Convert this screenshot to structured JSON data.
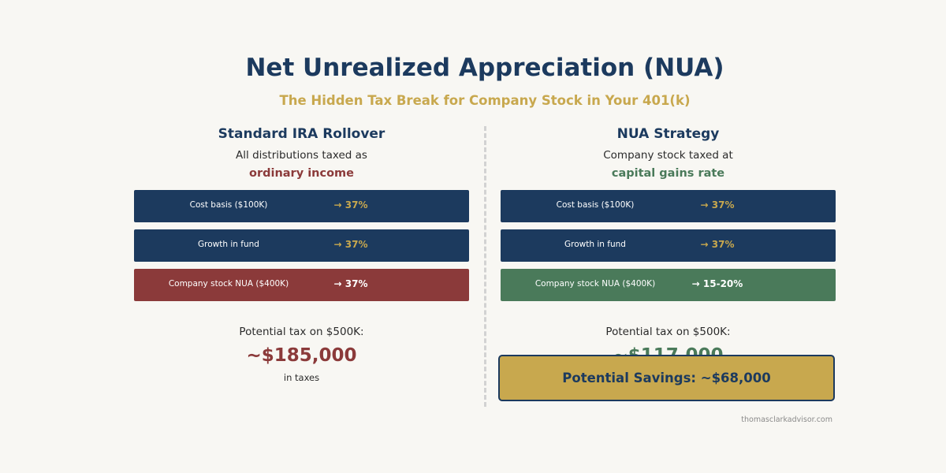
{
  "header": {
    "title": "Net Unrealized Appreciation (NUA)",
    "subtitle": "The Hidden Tax Break for Company Stock in Your 401(k)"
  },
  "colors": {
    "navy": "#1c3a5e",
    "gold": "#c8a84e",
    "red": "#8b3a3a",
    "green": "#4a7a5a",
    "background": "#f8f7f3"
  },
  "left": {
    "title": "Standard IRA Rollover",
    "description": "All distributions taxed as",
    "emphasis": "ordinary income",
    "rows": [
      {
        "label": "Cost basis ($100K)",
        "rate": "→ 37%"
      },
      {
        "label": "Growth in fund",
        "rate": "→ 37%"
      },
      {
        "label": "Company stock NUA ($400K)",
        "rate": "→ 37%"
      }
    ],
    "potential_label": "Potential tax on $500K:",
    "potential_amount": "~$185,000",
    "potential_note": "in taxes"
  },
  "right": {
    "title": "NUA Strategy",
    "description": "Company stock taxed at",
    "emphasis": "capital gains rate",
    "rows": [
      {
        "label": "Cost basis ($100K)",
        "rate": "→ 37%"
      },
      {
        "label": "Growth in fund",
        "rate": "→ 37%"
      },
      {
        "label": "Company stock NUA ($400K)",
        "rate": "→ 15-20%"
      }
    ],
    "potential_label": "Potential tax on $500K:",
    "potential_amount": "~$117,000"
  },
  "savings": "Potential Savings: ~$68,000",
  "credit": "thomasclarkadvisor.com"
}
